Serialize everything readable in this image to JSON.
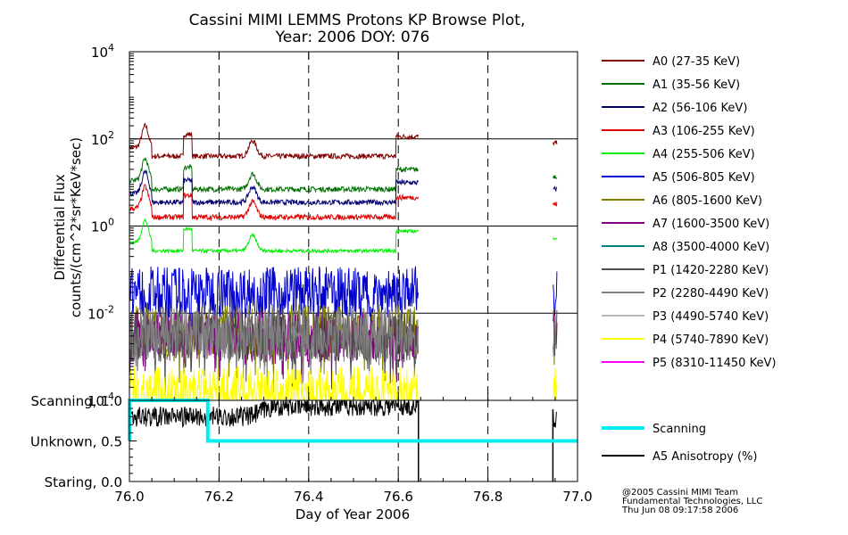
{
  "chart_data": {
    "type": "line",
    "title_line1": "Cassini MIMI LEMMS Protons KP Browse Plot,",
    "title_line2": "Year: 2006 DOY: 076",
    "xlabel": "Day of Year 2006",
    "xlim": [
      76.0,
      77.0
    ],
    "x_ticks": [
      "76.0",
      "76.2",
      "76.4",
      "76.6",
      "76.8",
      "77.0"
    ],
    "flux_panel": {
      "ylabel_line1": "Differential Flux",
      "ylabel_line2": "counts/(cm^2*sr*KeV*sec)",
      "yscale": "log",
      "ylim": [
        0.0001,
        10000
      ],
      "y_ticks": [
        {
          "base": "10",
          "exp": "4",
          "value": 10000
        },
        {
          "base": "10",
          "exp": "2",
          "value": 100
        },
        {
          "base": "10",
          "exp": "0",
          "value": 1
        },
        {
          "base": "10",
          "exp": "-2",
          "value": 0.01
        },
        {
          "base": "10",
          "exp": "-4",
          "value": 0.0001
        }
      ],
      "series": [
        {
          "name": "A0 (27-35 KeV)",
          "color": "#800000",
          "level": 40
        },
        {
          "name": "A1 (35-56 KeV)",
          "color": "#007000",
          "level": 7
        },
        {
          "name": "A2 (56-106 KeV)",
          "color": "#000070",
          "level": 3.5
        },
        {
          "name": "A3 (106-255 KeV)",
          "color": "#e00000",
          "level": 1.6
        },
        {
          "name": "A4 (255-506 KeV)",
          "color": "#00ee00",
          "level": 0.27
        },
        {
          "name": "A5 (506-805 KeV)",
          "color": "#0000d0",
          "level": 0.03
        },
        {
          "name": "A6 (805-1600 KeV)",
          "color": "#808000",
          "level": 0.004
        },
        {
          "name": "A7 (1600-3500 KeV)",
          "color": "#800080",
          "level": 0.003
        },
        {
          "name": "A8 (3500-4000 KeV)",
          "color": "#008080",
          "level": null
        },
        {
          "name": "P1 (1420-2280 KeV)",
          "color": "#505050",
          "level": 0.003
        },
        {
          "name": "P2 (2280-4490 KeV)",
          "color": "#808080",
          "level": 0.0035
        },
        {
          "name": "P3 (4490-5740 KeV)",
          "color": "#b8b8b8",
          "level": null
        },
        {
          "name": "P4 (5740-7890 KeV)",
          "color": "#ffff00",
          "level": 0.00015
        },
        {
          "name": "P5 (8310-11450 KeV)",
          "color": "#ff00ff",
          "level": null
        }
      ]
    },
    "anisotropy_panel": {
      "ylim": [
        0.0,
        1.0
      ],
      "y_ticks": [
        "Scanning, 1.0",
        "Unknown, 0.5",
        "Staring, 0.0"
      ],
      "y_tick_values": [
        1.0,
        0.5,
        0.0
      ],
      "series": [
        {
          "name": "Scanning",
          "color": "#00eeee",
          "x": [
            76.0,
            76.0,
            76.175,
            76.175,
            77.0
          ],
          "y": [
            0.5,
            1.0,
            1.0,
            0.5,
            0.5
          ]
        },
        {
          "name": "A5 Anisotropy (%)",
          "color": "#000000"
        }
      ]
    },
    "dashed_gridlines_x": [
      76.2,
      76.4,
      76.6,
      76.8
    ],
    "data_gaps": [
      [
        76.645,
        76.945
      ]
    ]
  },
  "credits": {
    "line1": "@2005 Cassini MIMI Team",
    "line2": "Fundamental Technologies, LLC",
    "line3": "Thu Jun 08 09:17:58 2006"
  }
}
